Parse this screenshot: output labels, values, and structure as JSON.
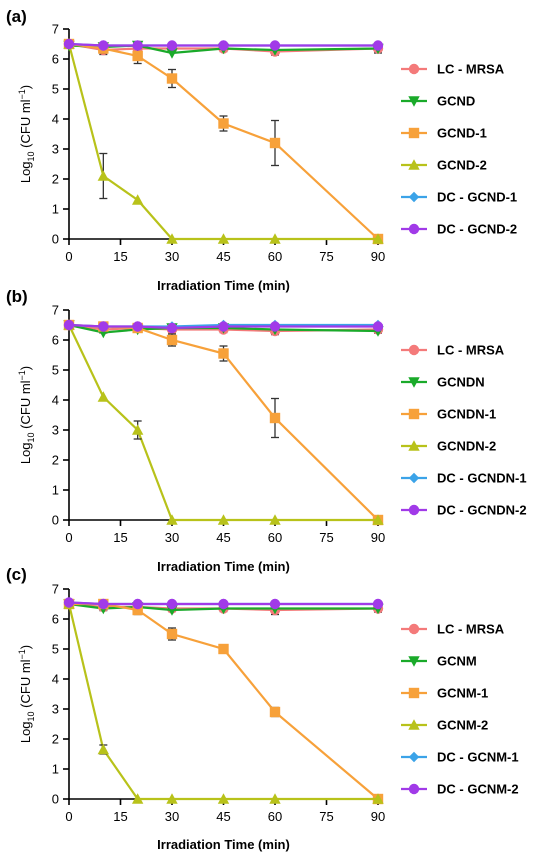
{
  "colors": {
    "LC": "#f47a7a",
    "G": "#1aaa2a",
    "G1": "#f7a13a",
    "G2": "#b8c21a",
    "DC1": "#3ba3e8",
    "DC2": "#a13ae8",
    "error": "#333333"
  },
  "chart_data": [
    {
      "panel": "(a)",
      "type": "line",
      "xlabel": "Irradiation Time (min)",
      "ylabel_main": "Log",
      "ylabel_sub": "10",
      "ylabel_rest": " (CFU ml",
      "ylabel_sup": "−1",
      "ylabel_end": ")",
      "xlim": [
        0,
        90
      ],
      "ylim": [
        0,
        7
      ],
      "xticks": [
        0,
        15,
        30,
        45,
        60,
        75,
        90
      ],
      "yticks": [
        0,
        1,
        2,
        3,
        4,
        5,
        6,
        7
      ],
      "series": [
        {
          "name": "LC - MRSA",
          "color_key": "LC",
          "marker": "circle",
          "x": [
            0,
            10,
            20,
            30,
            45,
            60,
            90
          ],
          "y": [
            6.5,
            6.3,
            6.35,
            6.35,
            6.35,
            6.25,
            6.35
          ],
          "err": [
            0.1,
            0.15,
            0.15,
            0.1,
            0.1,
            0.12,
            0.15
          ]
        },
        {
          "name": "GCND",
          "color_key": "G",
          "marker": "tri-down",
          "x": [
            0,
            10,
            20,
            30,
            45,
            60,
            90
          ],
          "y": [
            6.45,
            6.4,
            6.45,
            6.2,
            6.35,
            6.3,
            6.35
          ],
          "err": [
            0,
            0,
            0,
            0,
            0,
            0,
            0
          ]
        },
        {
          "name": "GCND-1",
          "color_key": "G1",
          "marker": "square",
          "x": [
            0,
            10,
            20,
            30,
            45,
            60,
            90
          ],
          "y": [
            6.5,
            6.35,
            6.1,
            5.35,
            3.85,
            3.2,
            0
          ],
          "err": [
            0.1,
            0.15,
            0.25,
            0.3,
            0.25,
            0.75,
            0
          ]
        },
        {
          "name": "GCND-2",
          "color_key": "G2",
          "marker": "tri-up",
          "x": [
            0,
            10,
            20,
            30,
            45,
            60,
            90
          ],
          "y": [
            6.5,
            2.1,
            1.3,
            0,
            0,
            0,
            0
          ],
          "err": [
            0,
            0.75,
            0,
            0,
            0,
            0,
            0
          ]
        },
        {
          "name": "DC - GCND-1",
          "color_key": "DC1",
          "marker": "diamond",
          "x": [
            0,
            10,
            20,
            30,
            45,
            60,
            90
          ],
          "y": [
            6.5,
            6.45,
            6.45,
            6.45,
            6.45,
            6.45,
            6.45
          ],
          "err": [
            0,
            0,
            0,
            0,
            0,
            0,
            0
          ]
        },
        {
          "name": "DC - GCND-2",
          "color_key": "DC2",
          "marker": "circle",
          "x": [
            0,
            10,
            20,
            30,
            45,
            60,
            90
          ],
          "y": [
            6.5,
            6.45,
            6.45,
            6.45,
            6.45,
            6.45,
            6.45
          ],
          "err": [
            0,
            0,
            0,
            0,
            0,
            0,
            0
          ]
        }
      ]
    },
    {
      "panel": "(b)",
      "type": "line",
      "xlabel": "Irradiation Time (min)",
      "ylabel_main": "Log",
      "ylabel_sub": "10",
      "ylabel_rest": " (CFU ml",
      "ylabel_sup": "−1",
      "ylabel_end": ")",
      "xlim": [
        0,
        90
      ],
      "ylim": [
        0,
        7
      ],
      "xticks": [
        0,
        15,
        30,
        45,
        60,
        75,
        90
      ],
      "yticks": [
        0,
        1,
        2,
        3,
        4,
        5,
        6,
        7
      ],
      "series": [
        {
          "name": "LC - MRSA",
          "color_key": "LC",
          "marker": "circle",
          "x": [
            0,
            10,
            20,
            30,
            45,
            60,
            90
          ],
          "y": [
            6.5,
            6.35,
            6.4,
            6.35,
            6.35,
            6.3,
            6.35
          ],
          "err": [
            0.1,
            0.12,
            0.1,
            0.1,
            0.1,
            0.12,
            0.12
          ]
        },
        {
          "name": "GCNDN",
          "color_key": "G",
          "marker": "tri-down",
          "x": [
            0,
            10,
            20,
            30,
            45,
            60,
            90
          ],
          "y": [
            6.5,
            6.25,
            6.35,
            6.4,
            6.4,
            6.35,
            6.3
          ],
          "err": [
            0,
            0,
            0,
            0,
            0,
            0,
            0
          ]
        },
        {
          "name": "GCNDN-1",
          "color_key": "G1",
          "marker": "square",
          "x": [
            0,
            10,
            20,
            30,
            45,
            60,
            90
          ],
          "y": [
            6.5,
            6.45,
            6.4,
            6.0,
            5.55,
            3.4,
            0
          ],
          "err": [
            0.1,
            0.12,
            0.1,
            0.2,
            0.25,
            0.65,
            0
          ]
        },
        {
          "name": "GCNDN-2",
          "color_key": "G2",
          "marker": "tri-up",
          "x": [
            0,
            10,
            20,
            30,
            45,
            60,
            90
          ],
          "y": [
            6.5,
            4.1,
            3.0,
            0,
            0,
            0,
            0
          ],
          "err": [
            0,
            0,
            0.3,
            0,
            0,
            0,
            0
          ]
        },
        {
          "name": "DC - GCNDN-1",
          "color_key": "DC1",
          "marker": "diamond",
          "x": [
            0,
            10,
            20,
            30,
            45,
            60,
            90
          ],
          "y": [
            6.5,
            6.45,
            6.45,
            6.45,
            6.5,
            6.5,
            6.5
          ],
          "err": [
            0,
            0,
            0,
            0,
            0,
            0,
            0
          ]
        },
        {
          "name": "DC - GCNDN-2",
          "color_key": "DC2",
          "marker": "circle",
          "x": [
            0,
            10,
            20,
            30,
            45,
            60,
            90
          ],
          "y": [
            6.5,
            6.45,
            6.45,
            6.4,
            6.45,
            6.45,
            6.45
          ],
          "err": [
            0,
            0,
            0,
            0,
            0,
            0,
            0
          ]
        }
      ]
    },
    {
      "panel": "(c)",
      "type": "line",
      "xlabel": "Irradiation Time (min)",
      "ylabel_main": "Log",
      "ylabel_sub": "10",
      "ylabel_rest": " (CFU ml",
      "ylabel_sup": "−1",
      "ylabel_end": ")",
      "xlim": [
        0,
        90
      ],
      "ylim": [
        0,
        7
      ],
      "xticks": [
        0,
        15,
        30,
        45,
        60,
        75,
        90
      ],
      "yticks": [
        0,
        1,
        2,
        3,
        4,
        5,
        6,
        7
      ],
      "series": [
        {
          "name": "LC - MRSA",
          "color_key": "LC",
          "marker": "circle",
          "x": [
            0,
            10,
            20,
            30,
            45,
            60,
            90
          ],
          "y": [
            6.5,
            6.4,
            6.4,
            6.35,
            6.35,
            6.3,
            6.35
          ],
          "err": [
            0.1,
            0.12,
            0.1,
            0.1,
            0.1,
            0.15,
            0.12
          ]
        },
        {
          "name": "GCNM",
          "color_key": "G",
          "marker": "tri-down",
          "x": [
            0,
            10,
            20,
            30,
            45,
            60,
            90
          ],
          "y": [
            6.5,
            6.35,
            6.4,
            6.3,
            6.35,
            6.35,
            6.35
          ],
          "err": [
            0,
            0,
            0,
            0,
            0,
            0,
            0
          ]
        },
        {
          "name": "GCNM-1",
          "color_key": "G1",
          "marker": "square",
          "x": [
            0,
            10,
            20,
            30,
            45,
            60,
            90
          ],
          "y": [
            6.5,
            6.5,
            6.3,
            5.5,
            5.0,
            2.9,
            0
          ],
          "err": [
            0.1,
            0.12,
            0.15,
            0.2,
            0,
            0.15,
            0
          ]
        },
        {
          "name": "GCNM-2",
          "color_key": "G2",
          "marker": "tri-up",
          "x": [
            0,
            10,
            20,
            30,
            45,
            60,
            90
          ],
          "y": [
            6.5,
            1.65,
            0,
            0,
            0,
            0,
            0
          ],
          "err": [
            0,
            0.15,
            0,
            0,
            0,
            0,
            0
          ]
        },
        {
          "name": "DC - GCNM-1",
          "color_key": "DC1",
          "marker": "diamond",
          "x": [
            0,
            10,
            20,
            30,
            45,
            60,
            90
          ],
          "y": [
            6.55,
            6.5,
            6.5,
            6.5,
            6.5,
            6.5,
            6.5
          ],
          "err": [
            0,
            0,
            0,
            0,
            0,
            0,
            0
          ]
        },
        {
          "name": "DC - GCNM-2",
          "color_key": "DC2",
          "marker": "circle",
          "x": [
            0,
            10,
            20,
            30,
            45,
            60,
            90
          ],
          "y": [
            6.55,
            6.5,
            6.5,
            6.5,
            6.5,
            6.5,
            6.5
          ],
          "err": [
            0,
            0,
            0,
            0,
            0,
            0,
            0
          ]
        }
      ]
    }
  ]
}
